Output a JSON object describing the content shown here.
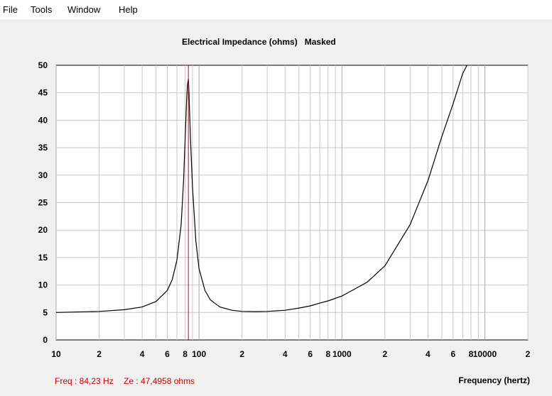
{
  "menu": {
    "file": "File",
    "tools": "Tools",
    "window": "Window",
    "help": "Help"
  },
  "chart_title": "Electrical Impedance (ohms)   Masked",
  "status": {
    "freq": "Freq : 84,23 Hz",
    "ze": "Ze : 47,4958 ohms"
  },
  "colors": {
    "curve": "#000000",
    "cursor": "#d00000",
    "grid": "#c8c8c8",
    "plot_bg": "#ffffff"
  },
  "chart_data": {
    "type": "line",
    "title": "Electrical Impedance (ohms)   Masked",
    "xlabel": "Frequency (hertz)",
    "ylabel": "",
    "xscale": "log",
    "xlim": [
      10,
      20000
    ],
    "ylim": [
      0,
      50
    ],
    "grid": true,
    "x_tick_labels": [
      "10",
      "2",
      "4",
      "6",
      "8",
      "100",
      "2",
      "4",
      "6",
      "8",
      "1000",
      "2",
      "4",
      "6",
      "8",
      "10000",
      "2"
    ],
    "y_tick_labels": [
      "0",
      "5",
      "10",
      "15",
      "20",
      "25",
      "30",
      "35",
      "40",
      "45",
      "50"
    ],
    "cursor": {
      "x": 84.23,
      "y": 47.4958
    },
    "series": [
      {
        "x": [
          10,
          20,
          30,
          40,
          50,
          60,
          65,
          70,
          75,
          78,
          80,
          82,
          83,
          84.23,
          85,
          87,
          90,
          95,
          100,
          110,
          120,
          140,
          170,
          200,
          250,
          300,
          400,
          500,
          600,
          700,
          800,
          1000,
          1500,
          2000,
          3000,
          4000,
          5000,
          6000,
          7000,
          7500
        ],
        "y": [
          5.0,
          5.2,
          5.5,
          6.0,
          7.0,
          9.0,
          11.0,
          14.5,
          21.0,
          29.0,
          37.0,
          44.0,
          46.5,
          47.4958,
          45.0,
          37.0,
          28.0,
          18.0,
          13.0,
          9.0,
          7.3,
          6.0,
          5.4,
          5.2,
          5.15,
          5.2,
          5.4,
          5.8,
          6.2,
          6.7,
          7.1,
          8.0,
          10.5,
          13.5,
          21.0,
          29.0,
          37.0,
          43.0,
          48.5,
          50
        ]
      }
    ]
  }
}
